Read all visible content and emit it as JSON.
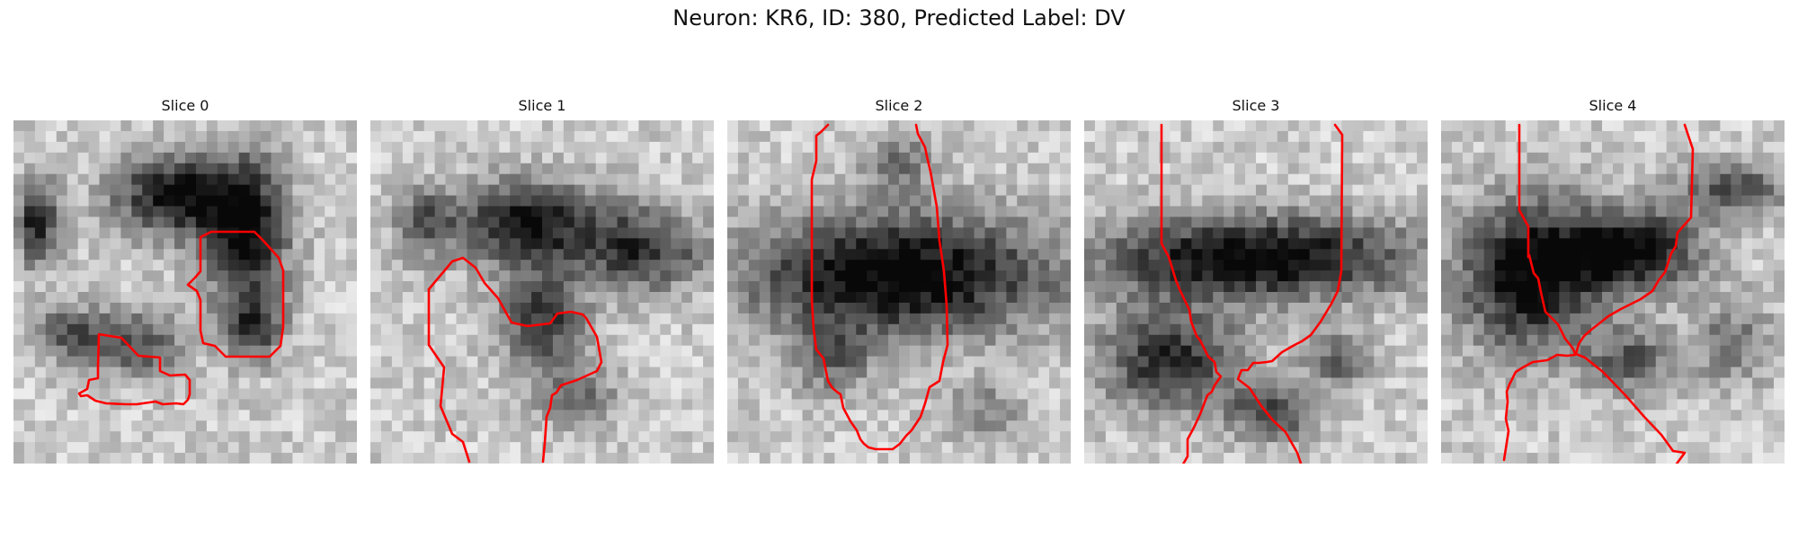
{
  "figure": {
    "title": "Neuron: KR6, ID: 380, Predicted Label: DV"
  },
  "panels": [
    {
      "title": "Slice 0"
    },
    {
      "title": "Slice 1"
    },
    {
      "title": "Slice 2"
    },
    {
      "title": "Slice 3"
    },
    {
      "title": "Slice 4"
    }
  ],
  "colors": {
    "contour": "#ff0000"
  }
}
